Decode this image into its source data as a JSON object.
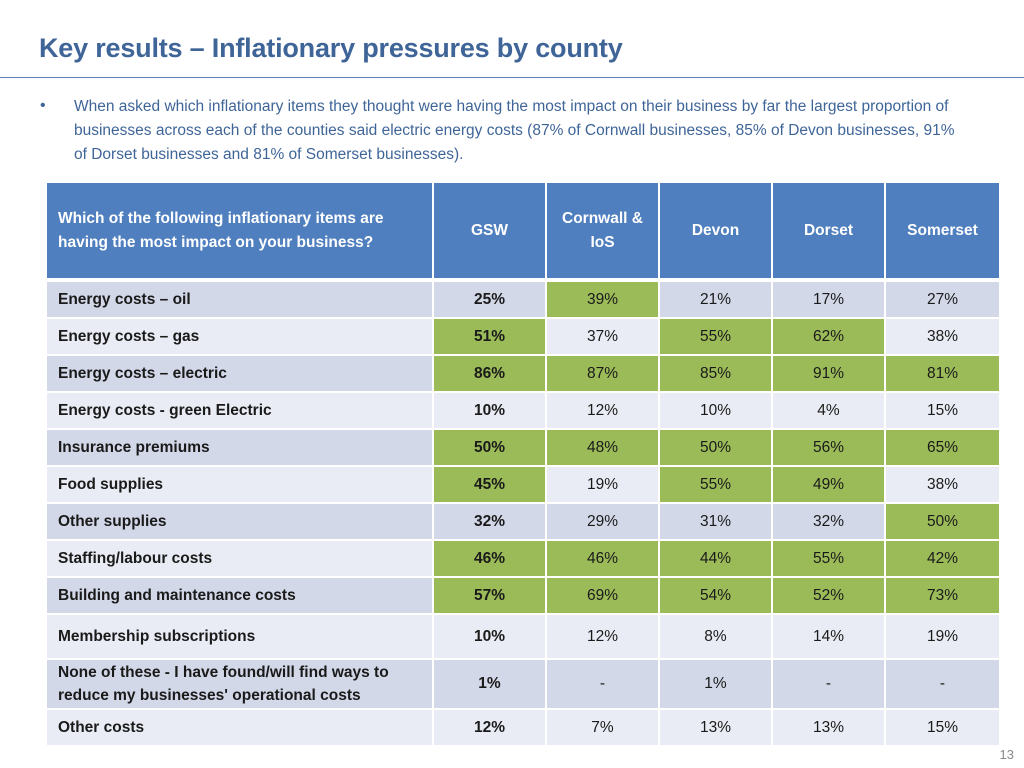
{
  "title": "Key results – Inflationary pressures by county",
  "bullet": "When asked which inflationary items they thought were having the most impact on their business by far the largest proportion of businesses across each of the counties said electric energy costs (87% of Cornwall businesses, 85% of Devon businesses, 91% of Dorset businesses and 81% of Somerset businesses).",
  "table": {
    "question": "Which of the following inflationary items are having the most impact on your business?",
    "columns": [
      "GSW",
      "Cornwall & IoS",
      "Devon",
      "Dorset",
      "Somerset"
    ],
    "highlight_color": "#9bbb59",
    "header_color": "#4f7fbf",
    "rows": [
      {
        "label": "Energy costs – oil",
        "values": [
          "25%",
          "39%",
          "21%",
          "17%",
          "27%"
        ],
        "highlight": [
          false,
          true,
          false,
          false,
          false
        ]
      },
      {
        "label": "Energy costs – gas",
        "values": [
          "51%",
          "37%",
          "55%",
          "62%",
          "38%"
        ],
        "highlight": [
          true,
          false,
          true,
          true,
          false
        ]
      },
      {
        "label": "Energy costs – electric",
        "values": [
          "86%",
          "87%",
          "85%",
          "91%",
          "81%"
        ],
        "highlight": [
          true,
          true,
          true,
          true,
          true
        ]
      },
      {
        "label": "Energy costs - green Electric",
        "values": [
          "10%",
          "12%",
          "10%",
          "4%",
          "15%"
        ],
        "highlight": [
          false,
          false,
          false,
          false,
          false
        ]
      },
      {
        "label": "Insurance premiums",
        "values": [
          "50%",
          "48%",
          "50%",
          "56%",
          "65%"
        ],
        "highlight": [
          true,
          true,
          true,
          true,
          true
        ]
      },
      {
        "label": "Food supplies",
        "values": [
          "45%",
          "19%",
          "55%",
          "49%",
          "38%"
        ],
        "highlight": [
          true,
          false,
          true,
          true,
          false
        ]
      },
      {
        "label": "Other supplies",
        "values": [
          "32%",
          "29%",
          "31%",
          "32%",
          "50%"
        ],
        "highlight": [
          false,
          false,
          false,
          false,
          true
        ]
      },
      {
        "label": "Staffing/labour costs",
        "values": [
          "46%",
          "46%",
          "44%",
          "55%",
          "42%"
        ],
        "highlight": [
          true,
          true,
          true,
          true,
          true
        ]
      },
      {
        "label": "Building and maintenance costs",
        "values": [
          "57%",
          "69%",
          "54%",
          "52%",
          "73%"
        ],
        "highlight": [
          true,
          true,
          true,
          true,
          true
        ]
      },
      {
        "label": "Membership subscriptions",
        "values": [
          "10%",
          "12%",
          "8%",
          "14%",
          "19%"
        ],
        "highlight": [
          false,
          false,
          false,
          false,
          false
        ]
      },
      {
        "label": "None of these - I have found/will find ways to reduce my businesses' operational costs",
        "values": [
          "1%",
          "-",
          "1%",
          "-",
          "-"
        ],
        "highlight": [
          false,
          false,
          false,
          false,
          false
        ]
      },
      {
        "label": "Other costs",
        "values": [
          "12%",
          "7%",
          "13%",
          "13%",
          "15%"
        ],
        "highlight": [
          false,
          false,
          false,
          false,
          false
        ]
      }
    ]
  },
  "page_number": "13"
}
